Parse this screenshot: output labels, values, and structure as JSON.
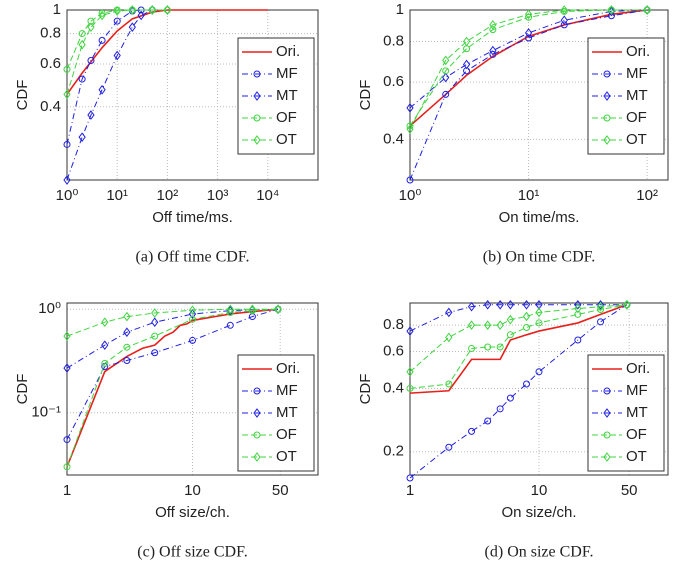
{
  "chart_data": [
    {
      "type": "line",
      "caption": "(a) Off time CDF.",
      "xlabel": "Off time/ms.",
      "ylabel": "CDF",
      "xscale": "log",
      "yscale": "log",
      "grid": true,
      "legend": "upper right",
      "xlim": [
        1,
        100000
      ],
      "ylim": [
        0.2,
        1
      ],
      "xticks": [
        {
          "value": 1,
          "label": "10⁰"
        },
        {
          "value": 10,
          "label": "10¹"
        },
        {
          "value": 100,
          "label": "10²"
        },
        {
          "value": 1000,
          "label": "10³"
        },
        {
          "value": 10000,
          "label": "10⁴"
        }
      ],
      "yticks": [
        0.4,
        0.6,
        0.8,
        1
      ],
      "series": [
        {
          "name": "Ori.",
          "color": "#e8201c",
          "marker": "none",
          "dash": "none",
          "x": [
            1,
            2,
            5,
            10,
            20,
            50,
            100,
            1000,
            10000
          ],
          "values": [
            0.45,
            0.55,
            0.7,
            0.82,
            0.92,
            0.98,
            1,
            1,
            1
          ]
        },
        {
          "name": "MF",
          "color": "#1f1fe0",
          "marker": "circle",
          "dash": "6 3 1 3",
          "x": [
            1,
            2,
            3,
            5,
            10,
            20,
            30,
            50
          ],
          "values": [
            0.28,
            0.52,
            0.62,
            0.75,
            0.9,
            0.99,
            1,
            1
          ]
        },
        {
          "name": "MT",
          "color": "#1f1fe0",
          "marker": "diamond",
          "dash": "6 3 1 3",
          "x": [
            1,
            2,
            3,
            5,
            10,
            20,
            30,
            50,
            100
          ],
          "values": [
            0.2,
            0.3,
            0.37,
            0.47,
            0.65,
            0.85,
            0.95,
            1,
            1
          ]
        },
        {
          "name": "OF",
          "color": "#3fd43f",
          "marker": "circle",
          "dash": "6 3",
          "x": [
            1,
            2,
            3,
            5,
            10,
            20,
            50,
            100
          ],
          "values": [
            0.57,
            0.8,
            0.9,
            0.97,
            1,
            1,
            1,
            1
          ]
        },
        {
          "name": "OT",
          "color": "#3fd43f",
          "marker": "diamond",
          "dash": "6 3",
          "x": [
            1,
            2,
            3,
            5,
            10,
            20,
            50,
            100
          ],
          "values": [
            0.45,
            0.72,
            0.85,
            0.95,
            0.99,
            1,
            1,
            1
          ]
        }
      ]
    },
    {
      "type": "line",
      "caption": "(b) On time CDF.",
      "xlabel": "On time/ms.",
      "ylabel": "CDF",
      "xscale": "log",
      "yscale": "log",
      "grid": true,
      "legend": "upper right",
      "xlim": [
        1,
        150
      ],
      "ylim": [
        0.3,
        1
      ],
      "xticks": [
        {
          "value": 1,
          "label": "10⁰"
        },
        {
          "value": 10,
          "label": "10¹"
        },
        {
          "value": 100,
          "label": "10²"
        }
      ],
      "yticks": [
        0.4,
        0.6,
        0.8,
        1
      ],
      "x": [
        1,
        2,
        3,
        5,
        10,
        20,
        50,
        100
      ],
      "series": [
        {
          "name": "Ori.",
          "color": "#e8201c",
          "marker": "none",
          "dash": "none",
          "values": [
            0.44,
            0.55,
            0.63,
            0.72,
            0.83,
            0.9,
            0.97,
            1
          ]
        },
        {
          "name": "MF",
          "color": "#1f1fe0",
          "marker": "circle",
          "dash": "6 3 1 3",
          "values": [
            0.3,
            0.55,
            0.65,
            0.73,
            0.82,
            0.9,
            0.96,
            1
          ]
        },
        {
          "name": "MT",
          "color": "#1f1fe0",
          "marker": "diamond",
          "dash": "6 3 1 3",
          "values": [
            0.5,
            0.62,
            0.68,
            0.75,
            0.85,
            0.93,
            0.99,
            1
          ]
        },
        {
          "name": "OF",
          "color": "#3fd43f",
          "marker": "circle",
          "dash": "6 3",
          "values": [
            0.44,
            0.65,
            0.76,
            0.87,
            0.95,
            0.99,
            1,
            1
          ]
        },
        {
          "name": "OT",
          "color": "#3fd43f",
          "marker": "diamond",
          "dash": "6 3",
          "values": [
            0.43,
            0.7,
            0.8,
            0.9,
            0.97,
            1,
            1,
            1
          ]
        }
      ]
    },
    {
      "type": "line",
      "caption": "(c) Off size CDF.",
      "xlabel": "Off size/ch.",
      "ylabel": "CDF",
      "xscale": "log",
      "yscale": "log",
      "grid": true,
      "legend": "lower right",
      "xlim": [
        1,
        100
      ],
      "ylim": [
        0.025,
        1.15
      ],
      "xticks": [
        1,
        10,
        50
      ],
      "yticks": [
        {
          "value": 0.1,
          "label": "10⁻¹"
        },
        {
          "value": 1,
          "label": "10⁰"
        }
      ],
      "x": [
        1,
        2,
        3,
        5,
        10,
        20,
        30,
        48
      ],
      "series": [
        {
          "name": "Ori.",
          "color": "#e8201c",
          "marker": "none",
          "dash": "none",
          "x": [
            1,
            2,
            3,
            4,
            5,
            6,
            7,
            8,
            9,
            10,
            20,
            30,
            40,
            48
          ],
          "values": [
            0.03,
            0.25,
            0.35,
            0.42,
            0.45,
            0.55,
            0.6,
            0.7,
            0.72,
            0.78,
            0.9,
            0.95,
            0.98,
            1
          ]
        },
        {
          "name": "MF",
          "color": "#1f1fe0",
          "marker": "circle",
          "dash": "6 3 1 3",
          "values": [
            0.055,
            0.28,
            0.32,
            0.38,
            0.5,
            0.7,
            0.85,
            1
          ]
        },
        {
          "name": "MT",
          "color": "#1f1fe0",
          "marker": "diamond",
          "dash": "6 3 1 3",
          "values": [
            0.27,
            0.45,
            0.6,
            0.75,
            0.9,
            0.97,
            0.99,
            1
          ]
        },
        {
          "name": "OF",
          "color": "#3fd43f",
          "marker": "circle",
          "dash": "6 3",
          "values": [
            0.03,
            0.3,
            0.43,
            0.55,
            0.8,
            0.93,
            0.97,
            1
          ]
        },
        {
          "name": "OT",
          "color": "#3fd43f",
          "marker": "diamond",
          "dash": "6 3",
          "values": [
            0.55,
            0.75,
            0.85,
            0.92,
            0.98,
            1,
            1,
            1
          ]
        }
      ]
    },
    {
      "type": "line",
      "caption": "(d) On size CDF.",
      "xlabel": "On size/ch.",
      "ylabel": "CDF",
      "xscale": "log",
      "yscale": "log",
      "grid": true,
      "legend": "lower right",
      "xlim": [
        1,
        100
      ],
      "ylim": [
        0.155,
        1.02
      ],
      "xticks": [
        1,
        10,
        50
      ],
      "yticks": [
        0.2,
        0.4,
        0.6,
        0.8
      ],
      "x": [
        1,
        2,
        3,
        4,
        5,
        6,
        8,
        10,
        20,
        30,
        48
      ],
      "series": [
        {
          "name": "Ori.",
          "color": "#e8201c",
          "marker": "none",
          "dash": "none",
          "values": [
            0.38,
            0.39,
            0.55,
            0.55,
            0.55,
            0.68,
            0.72,
            0.75,
            0.82,
            0.9,
            1
          ]
        },
        {
          "name": "MF",
          "color": "#1f1fe0",
          "marker": "circle",
          "dash": "6 3 1 3",
          "values": [
            0.15,
            0.21,
            0.25,
            0.28,
            0.32,
            0.36,
            0.42,
            0.48,
            0.68,
            0.83,
            1
          ]
        },
        {
          "name": "MT",
          "color": "#1f1fe0",
          "marker": "diamond",
          "dash": "6 3 1 3",
          "values": [
            0.75,
            0.92,
            0.98,
            1,
            1,
            1,
            1,
            1,
            1,
            1,
            1
          ]
        },
        {
          "name": "OF",
          "color": "#3fd43f",
          "marker": "circle",
          "dash": "6 3",
          "values": [
            0.4,
            0.42,
            0.62,
            0.63,
            0.63,
            0.72,
            0.78,
            0.82,
            0.9,
            0.95,
            1
          ]
        },
        {
          "name": "OT",
          "color": "#3fd43f",
          "marker": "diamond",
          "dash": "6 3",
          "values": [
            0.48,
            0.7,
            0.8,
            0.8,
            0.8,
            0.85,
            0.88,
            0.92,
            0.96,
            0.98,
            1
          ]
        }
      ]
    }
  ]
}
